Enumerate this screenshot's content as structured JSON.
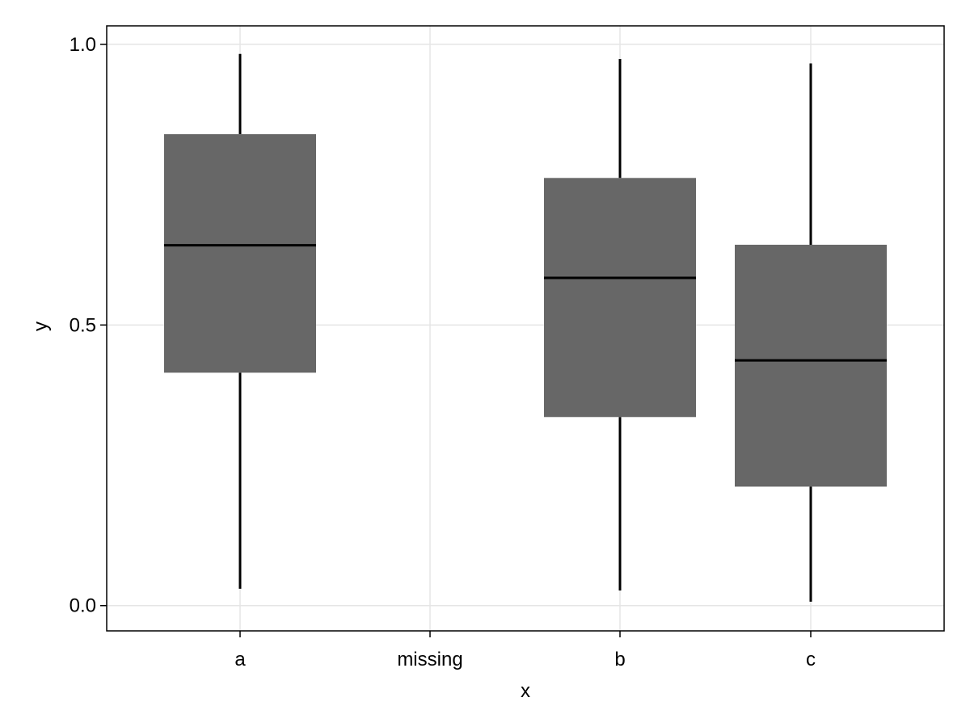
{
  "chart_data": {
    "type": "boxplot",
    "title": "",
    "xlabel": "x",
    "ylabel": "y",
    "categories": [
      "a",
      "missing",
      "b",
      "c"
    ],
    "ylim": [
      -0.045,
      1.033
    ],
    "yticks": [
      0.0,
      0.5,
      1.0
    ],
    "ytick_labels": [
      "0.0",
      "0.5",
      "1.0"
    ],
    "grid": true,
    "box_color": "#676767",
    "line_color": "#000000",
    "grid_color": "#e5e5e5",
    "boxes": [
      {
        "category": "a",
        "whisker_low": 0.03,
        "q1": 0.415,
        "median": 0.642,
        "q3": 0.84,
        "whisker_high": 0.983
      },
      {
        "category": "b",
        "whisker_low": 0.027,
        "q1": 0.336,
        "median": 0.584,
        "q3": 0.762,
        "whisker_high": 0.974
      },
      {
        "category": "c",
        "whisker_low": 0.007,
        "q1": 0.212,
        "median": 0.437,
        "q3": 0.643,
        "whisker_high": 0.966
      }
    ]
  }
}
